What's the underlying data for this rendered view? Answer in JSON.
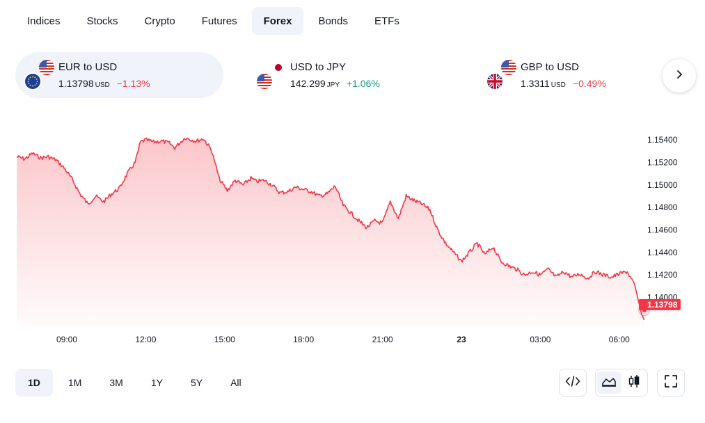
{
  "tabs": [
    {
      "label": "Indices",
      "active": false
    },
    {
      "label": "Stocks",
      "active": false
    },
    {
      "label": "Crypto",
      "active": false
    },
    {
      "label": "Futures",
      "active": false
    },
    {
      "label": "Forex",
      "active": true
    },
    {
      "label": "Bonds",
      "active": false
    },
    {
      "label": "ETFs",
      "active": false
    }
  ],
  "tickers": [
    {
      "title": "EUR to USD",
      "price": "1.13798",
      "currency": "USD",
      "change": "−1.13%",
      "direction": "down",
      "flags": [
        "eu-flag-icon",
        "us-flag-icon"
      ]
    },
    {
      "title": "USD to JPY",
      "price": "142.299",
      "currency": "JPY",
      "change": "+1.06%",
      "direction": "up",
      "flags": [
        "us-flag-icon",
        "jp-flag-icon"
      ]
    },
    {
      "title": "GBP to USD",
      "price": "1.3311",
      "currency": "USD",
      "change": "−0.49%",
      "direction": "down",
      "flags": [
        "uk-flag-icon",
        "us-flag-icon"
      ]
    }
  ],
  "colors": {
    "line": "#f23645",
    "positive": "#089981",
    "negative": "#f23645",
    "active_bg": "#f0f3fa"
  },
  "chart_data": {
    "type": "area",
    "title": "",
    "xlabel": "",
    "ylabel": "",
    "x_ticks": [
      "09:00",
      "12:00",
      "15:00",
      "18:00",
      "21:00",
      "23",
      "03:00",
      "06:00"
    ],
    "y_ticks": [
      "1.15400",
      "1.15200",
      "1.15000",
      "1.14800",
      "1.14600",
      "1.14400",
      "1.14200",
      "1.14000"
    ],
    "ylim": [
      1.1375,
      1.1553
    ],
    "last_value_label": "1.13798",
    "grid": false,
    "series": [
      {
        "x_hours": [
          -1.9,
          -1.6,
          -1.3,
          -1.0,
          -0.7,
          -0.4,
          -0.1,
          0.2,
          0.5,
          0.8,
          1.1,
          1.4,
          1.7,
          2.0,
          2.3,
          2.6,
          2.8,
          3.0,
          3.3,
          3.6,
          3.9,
          4.1,
          4.5,
          4.9,
          5.2,
          5.5,
          5.8,
          6.1,
          6.4,
          6.7,
          7.0,
          7.2,
          7.5,
          7.8,
          8.1,
          8.4,
          8.7,
          9.0,
          9.3,
          9.6,
          9.9,
          10.2,
          10.5,
          10.8,
          11.1,
          11.4,
          11.7,
          12.0,
          12.3,
          12.6,
          12.9,
          13.2,
          13.5,
          13.8,
          14.1,
          14.4,
          14.7,
          15.0,
          15.3,
          15.6,
          15.9,
          16.2,
          16.5,
          16.8,
          17.1,
          17.4,
          17.7,
          18.0,
          18.3,
          18.6,
          18.9,
          19.2,
          19.5,
          19.8,
          20.1,
          20.4,
          20.7,
          21.0,
          21.3,
          21.6,
          21.85,
          21.95
        ],
        "values": [
          1.1525,
          1.1523,
          1.1528,
          1.1524,
          1.1525,
          1.1522,
          1.1515,
          1.1505,
          1.1492,
          1.1483,
          1.149,
          1.1485,
          1.1492,
          1.1497,
          1.151,
          1.152,
          1.1538,
          1.154,
          1.1538,
          1.1539,
          1.1537,
          1.1533,
          1.1542,
          1.1539,
          1.1541,
          1.1531,
          1.1505,
          1.1495,
          1.1504,
          1.15,
          1.1506,
          1.1503,
          1.1504,
          1.15,
          1.1493,
          1.1494,
          1.1498,
          1.1496,
          1.1494,
          1.149,
          1.1492,
          1.1499,
          1.1482,
          1.1475,
          1.1468,
          1.1462,
          1.1468,
          1.1466,
          1.1485,
          1.147,
          1.149,
          1.1486,
          1.1483,
          1.1478,
          1.146,
          1.1448,
          1.144,
          1.1432,
          1.144,
          1.1448,
          1.1438,
          1.1445,
          1.1432,
          1.1428,
          1.1425,
          1.142,
          1.1423,
          1.142,
          1.1425,
          1.1418,
          1.1423,
          1.1418,
          1.1421,
          1.1417,
          1.1423,
          1.142,
          1.1418,
          1.1421,
          1.1423,
          1.141,
          1.1385,
          1.138
        ]
      }
    ]
  },
  "ranges": [
    {
      "label": "1D",
      "active": true
    },
    {
      "label": "1M",
      "active": false
    },
    {
      "label": "3M",
      "active": false
    },
    {
      "label": "1Y",
      "active": false
    },
    {
      "label": "5Y",
      "active": false
    },
    {
      "label": "All",
      "active": false
    }
  ],
  "tools": {
    "embed": "code-embed-icon",
    "area": "area-chart-icon",
    "candles": "candlestick-icon",
    "fullscreen": "fullscreen-icon"
  }
}
